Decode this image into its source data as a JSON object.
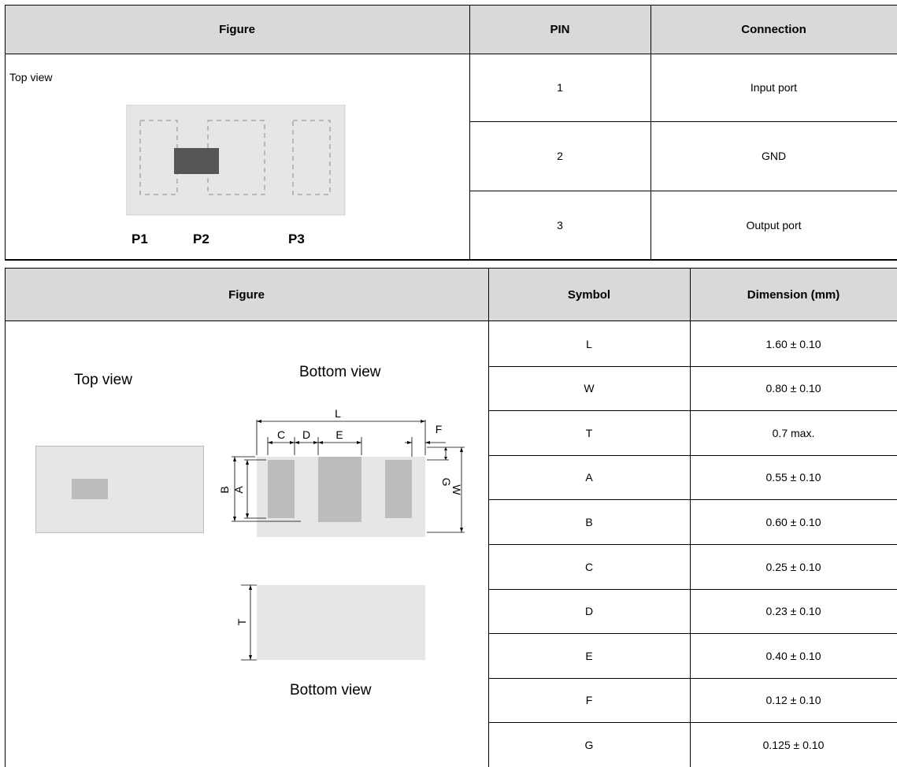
{
  "pin_table": {
    "headers": {
      "figure": "Figure",
      "pin": "PIN",
      "connection": "Connection"
    },
    "figure_caption": "Top view",
    "pad_labels": [
      "P1",
      "P2",
      "P3"
    ],
    "rows": [
      {
        "pin": "1",
        "connection": "Input port"
      },
      {
        "pin": "2",
        "connection": "GND"
      },
      {
        "pin": "3",
        "connection": "Output port"
      }
    ]
  },
  "dimension_table": {
    "headers": {
      "figure": "Figure",
      "symbol": "Symbol",
      "dimension": "Dimension (mm)"
    },
    "top_view_label": "Top view",
    "bottom_view_label_upper": "Bottom view",
    "bottom_view_label_lower": "Bottom view",
    "drawing_labels": {
      "L": "L",
      "C": "C",
      "D": "D",
      "E": "E",
      "F": "F",
      "B": "B",
      "A": "A",
      "G": "G",
      "W": "W",
      "T": "T"
    },
    "rows": [
      {
        "symbol": "L",
        "dimension": "1.60 ± 0.10"
      },
      {
        "symbol": "W",
        "dimension": "0.80 ± 0.10"
      },
      {
        "symbol": "T",
        "dimension": "0.7 max."
      },
      {
        "symbol": "A",
        "dimension": "0.55 ± 0.10"
      },
      {
        "symbol": "B",
        "dimension": "0.60 ± 0.10"
      },
      {
        "symbol": "C",
        "dimension": "0.25 ± 0.10"
      },
      {
        "symbol": "D",
        "dimension": "0.23 ± 0.10"
      },
      {
        "symbol": "E",
        "dimension": "0.40 ± 0.10"
      },
      {
        "symbol": "F",
        "dimension": "0.12 ± 0.10"
      },
      {
        "symbol": "G",
        "dimension": "0.125 ± 0.10"
      }
    ]
  }
}
